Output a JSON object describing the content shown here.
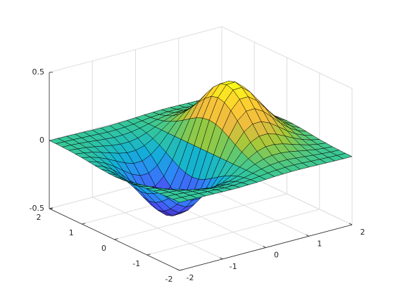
{
  "chart_data": {
    "type": "surface",
    "x": [
      -2,
      -1.8,
      -1.6,
      -1.4,
      -1.2,
      -1,
      -0.8,
      -0.6,
      -0.4,
      -0.2,
      0,
      0.2,
      0.4,
      0.6,
      0.8,
      1,
      1.2,
      1.4,
      1.6,
      1.8,
      2
    ],
    "y": [
      -2,
      -1.8,
      -1.6,
      -1.4,
      -1.2,
      -1,
      -0.8,
      -0.6,
      -0.4,
      -0.2,
      0,
      0.2,
      0.4,
      0.6,
      0.8,
      1,
      1.2,
      1.4,
      1.6,
      1.8,
      2
    ],
    "z": [
      [
        -0.001,
        -0.001,
        -0.002,
        -0.004,
        -0.005,
        -0.007,
        -0.008,
        -0.008,
        -0.006,
        -0.004,
        0,
        0.004,
        0.006,
        0.008,
        0.008,
        0.007,
        0.005,
        0.004,
        0.002,
        0.001,
        0.001
      ],
      [
        -0.001,
        -0.003,
        -0.005,
        -0.008,
        -0.011,
        -0.014,
        -0.017,
        -0.016,
        -0.013,
        -0.008,
        0,
        0.008,
        0.013,
        0.016,
        0.017,
        0.014,
        0.011,
        0.008,
        0.005,
        0.003,
        0.001
      ],
      [
        -0.003,
        -0.005,
        -0.01,
        -0.015,
        -0.022,
        -0.028,
        -0.033,
        -0.032,
        -0.026,
        -0.015,
        0,
        0.015,
        0.026,
        0.032,
        0.033,
        0.028,
        0.022,
        0.015,
        0.01,
        0.005,
        0.003
      ],
      [
        -0.005,
        -0.01,
        -0.017,
        -0.028,
        -0.04,
        -0.052,
        -0.059,
        -0.059,
        -0.048,
        -0.027,
        0,
        0.027,
        0.048,
        0.059,
        0.059,
        0.052,
        0.04,
        0.028,
        0.017,
        0.01,
        0.005
      ],
      [
        -0.009,
        -0.017,
        -0.029,
        -0.047,
        -0.067,
        -0.087,
        -0.1,
        -0.099,
        -0.081,
        -0.046,
        0,
        0.046,
        0.081,
        0.099,
        0.1,
        0.087,
        0.067,
        0.047,
        0.029,
        0.017,
        0.009
      ],
      [
        -0.013,
        -0.026,
        -0.046,
        -0.073,
        -0.105,
        -0.135,
        -0.155,
        -0.154,
        -0.125,
        -0.071,
        0,
        0.071,
        0.125,
        0.154,
        0.155,
        0.135,
        0.105,
        0.073,
        0.046,
        0.026,
        0.013
      ],
      [
        -0.019,
        -0.037,
        -0.065,
        -0.104,
        -0.15,
        -0.194,
        -0.222,
        -0.221,
        -0.18,
        -0.101,
        0,
        0.101,
        0.18,
        0.221,
        0.222,
        0.194,
        0.15,
        0.104,
        0.065,
        0.037,
        0.019
      ],
      [
        -0.026,
        -0.049,
        -0.086,
        -0.138,
        -0.198,
        -0.257,
        -0.294,
        -0.292,
        -0.238,
        -0.134,
        0,
        0.134,
        0.238,
        0.292,
        0.294,
        0.257,
        0.198,
        0.138,
        0.086,
        0.049,
        0.026
      ],
      [
        -0.031,
        -0.06,
        -0.105,
        -0.168,
        -0.242,
        -0.313,
        -0.359,
        -0.357,
        -0.29,
        -0.164,
        0,
        0.164,
        0.29,
        0.357,
        0.359,
        0.313,
        0.242,
        0.168,
        0.105,
        0.06,
        0.031
      ],
      [
        -0.035,
        -0.068,
        -0.119,
        -0.19,
        -0.273,
        -0.353,
        -0.405,
        -0.402,
        -0.327,
        -0.185,
        0,
        0.185,
        0.327,
        0.402,
        0.405,
        0.353,
        0.273,
        0.19,
        0.119,
        0.068,
        0.035
      ],
      [
        -0.037,
        -0.071,
        -0.124,
        -0.197,
        -0.284,
        -0.368,
        -0.422,
        -0.419,
        -0.341,
        -0.192,
        0,
        0.192,
        0.341,
        0.419,
        0.422,
        0.368,
        0.284,
        0.197,
        0.124,
        0.071,
        0.037
      ],
      [
        -0.035,
        -0.068,
        -0.119,
        -0.19,
        -0.273,
        -0.353,
        -0.405,
        -0.402,
        -0.327,
        -0.185,
        0,
        0.185,
        0.327,
        0.402,
        0.405,
        0.353,
        0.273,
        0.19,
        0.119,
        0.068,
        0.035
      ],
      [
        -0.031,
        -0.06,
        -0.105,
        -0.168,
        -0.242,
        -0.313,
        -0.359,
        -0.357,
        -0.29,
        -0.164,
        0,
        0.164,
        0.29,
        0.357,
        0.359,
        0.313,
        0.242,
        0.168,
        0.105,
        0.06,
        0.031
      ],
      [
        -0.026,
        -0.049,
        -0.086,
        -0.138,
        -0.198,
        -0.257,
        -0.294,
        -0.292,
        -0.238,
        -0.134,
        0,
        0.134,
        0.238,
        0.292,
        0.294,
        0.257,
        0.198,
        0.138,
        0.086,
        0.049,
        0.026
      ],
      [
        -0.019,
        -0.037,
        -0.065,
        -0.104,
        -0.15,
        -0.194,
        -0.222,
        -0.221,
        -0.18,
        -0.101,
        0,
        0.101,
        0.18,
        0.221,
        0.222,
        0.194,
        0.15,
        0.104,
        0.065,
        0.037,
        0.019
      ],
      [
        -0.013,
        -0.026,
        -0.046,
        -0.073,
        -0.105,
        -0.135,
        -0.155,
        -0.154,
        -0.125,
        -0.071,
        0,
        0.071,
        0.125,
        0.154,
        0.155,
        0.135,
        0.105,
        0.073,
        0.046,
        0.026,
        0.013
      ],
      [
        -0.009,
        -0.017,
        -0.029,
        -0.047,
        -0.067,
        -0.087,
        -0.1,
        -0.099,
        -0.081,
        -0.046,
        0,
        0.046,
        0.081,
        0.099,
        0.1,
        0.087,
        0.067,
        0.047,
        0.029,
        0.017,
        0.009
      ],
      [
        -0.005,
        -0.01,
        -0.017,
        -0.028,
        -0.04,
        -0.052,
        -0.059,
        -0.059,
        -0.048,
        -0.027,
        0,
        0.027,
        0.048,
        0.059,
        0.059,
        0.052,
        0.04,
        0.028,
        0.017,
        0.01,
        0.005
      ],
      [
        -0.003,
        -0.005,
        -0.01,
        -0.015,
        -0.022,
        -0.028,
        -0.033,
        -0.032,
        -0.026,
        -0.015,
        0,
        0.015,
        0.026,
        0.032,
        0.033,
        0.028,
        0.022,
        0.015,
        0.01,
        0.005,
        0.003
      ],
      [
        -0.001,
        -0.003,
        -0.005,
        -0.008,
        -0.011,
        -0.014,
        -0.017,
        -0.016,
        -0.013,
        -0.008,
        0,
        0.008,
        0.013,
        0.016,
        0.017,
        0.014,
        0.011,
        0.008,
        0.005,
        0.003,
        0.001
      ],
      [
        -0.001,
        -0.001,
        -0.002,
        -0.004,
        -0.005,
        -0.007,
        -0.008,
        -0.008,
        -0.006,
        -0.004,
        0,
        0.004,
        0.006,
        0.008,
        0.008,
        0.007,
        0.005,
        0.004,
        0.002,
        0.001,
        0.001
      ]
    ],
    "xlim": [
      -2,
      2
    ],
    "ylim": [
      -2,
      2
    ],
    "zlim": [
      -0.5,
      0.5
    ],
    "xticks": [
      -2,
      -1,
      0,
      1,
      2
    ],
    "yticks": [
      -2,
      -1,
      0,
      1,
      2
    ],
    "zticks": [
      -0.5,
      0,
      0.5
    ],
    "grid": true,
    "colormap": [
      "#3e26a8",
      "#4852f4",
      "#2e87f7",
      "#12b1d6",
      "#37c897",
      "#9fc93a",
      "#edba40",
      "#fdcc33",
      "#f9fb15"
    ],
    "edge_color": "#000000"
  }
}
